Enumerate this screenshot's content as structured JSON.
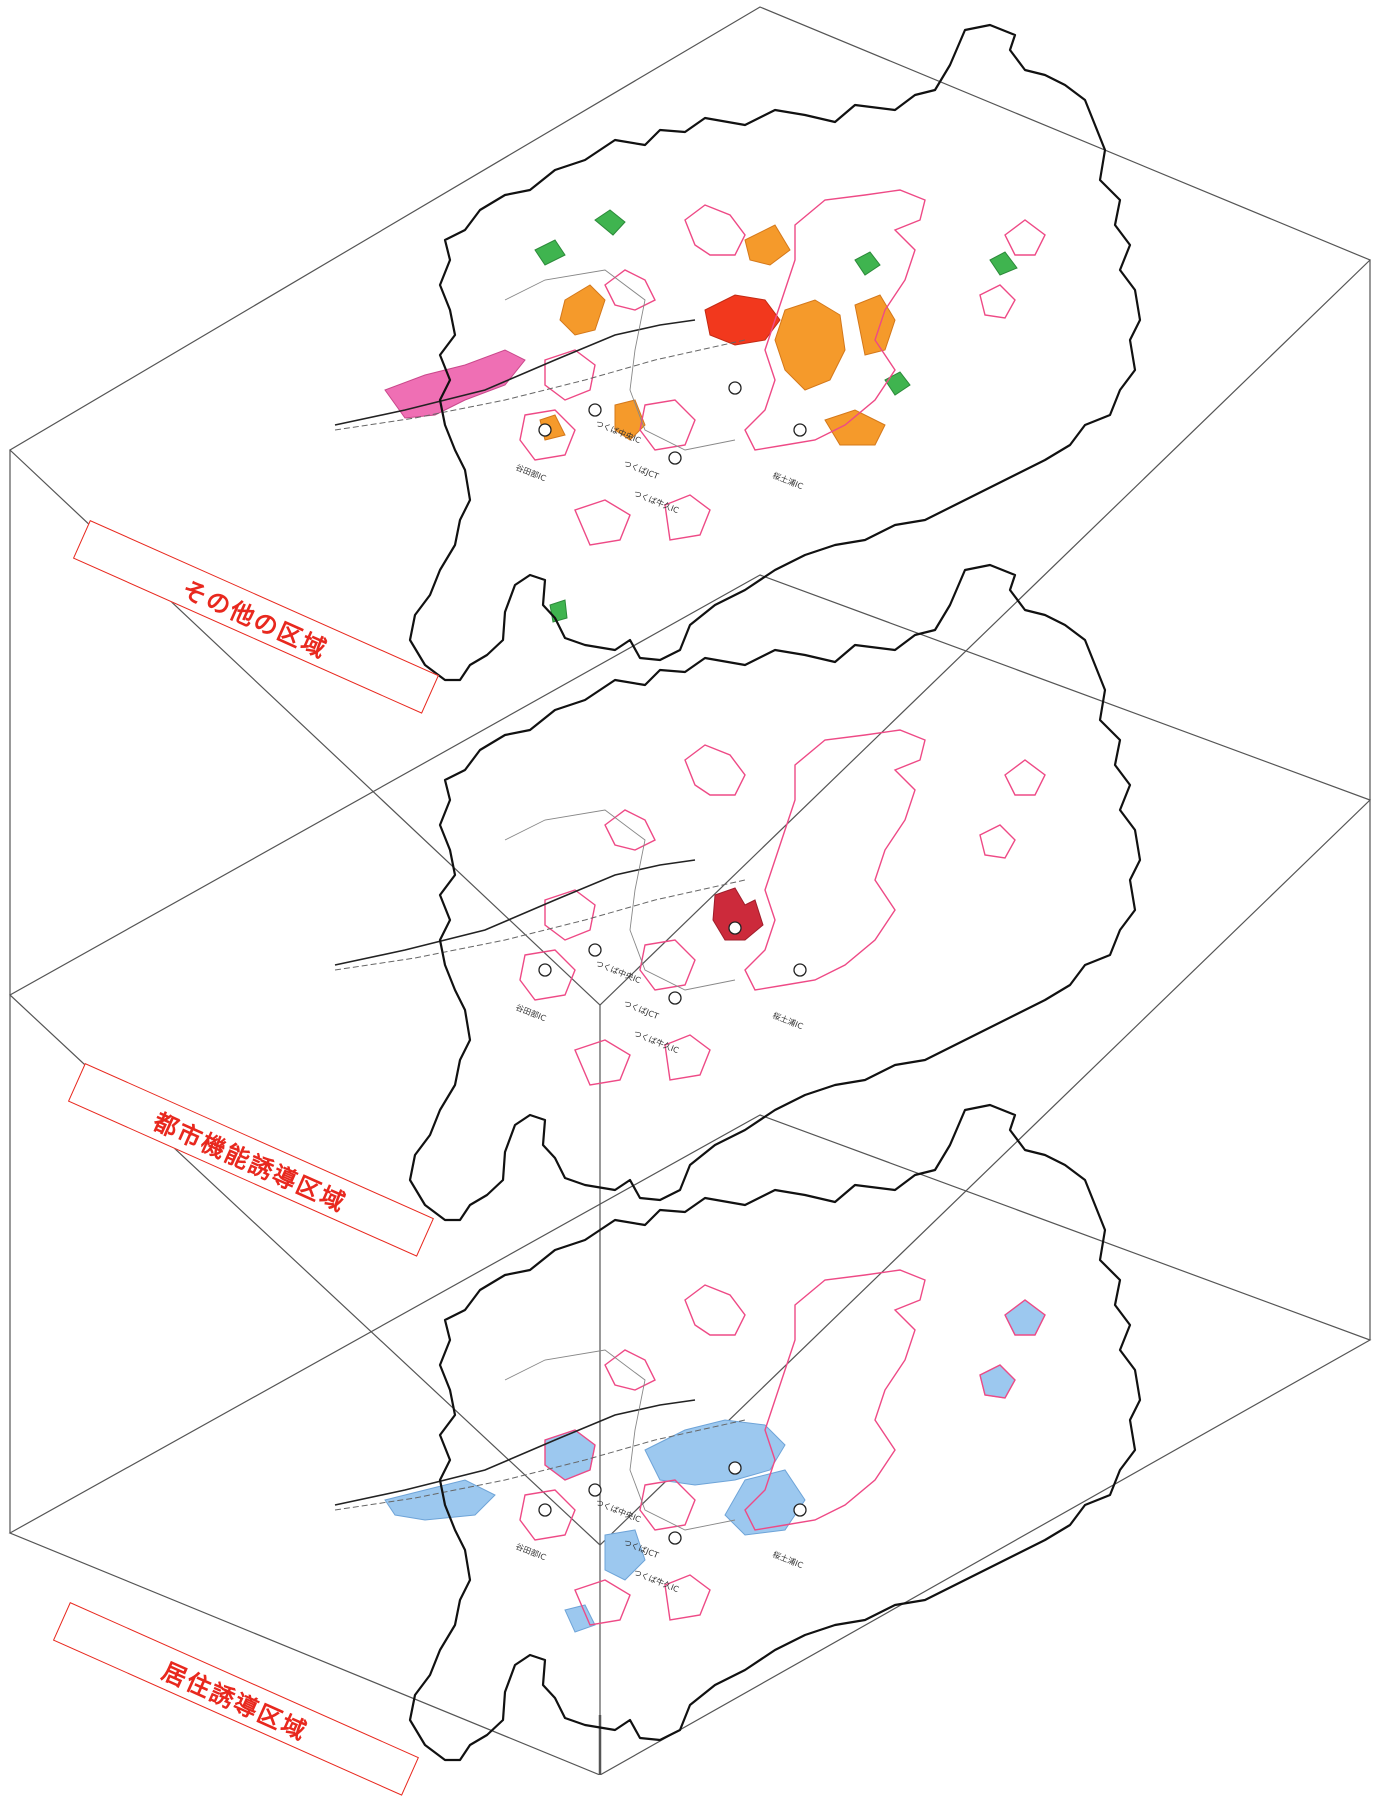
{
  "colors": {
    "frame": "#555555",
    "boundary": "#111111",
    "district_outline": "#ee4a86",
    "label_red": "#e8281e",
    "other_orange": "#f59a2b",
    "other_red": "#f2381d",
    "other_pink": "#ef6fb4",
    "other_green": "#3fb44f",
    "urban_function": "#cc2a3b",
    "residential": "#9cc8ef"
  },
  "layers": [
    {
      "id": "other",
      "label": "その他の区域",
      "road_labels": [
        "つくば中央IC",
        "谷田部IC",
        "桜土浦IC",
        "つくばJCT",
        "つくば牛久IC"
      ]
    },
    {
      "id": "urban-function",
      "label": "都市機能誘導区域",
      "road_labels": [
        "つくば中央IC",
        "谷田部IC",
        "桜土浦IC",
        "つくばJCT",
        "つくば牛久IC"
      ]
    },
    {
      "id": "residential",
      "label": "居住誘導区域",
      "road_labels": [
        "つくば中央IC",
        "谷田部IC",
        "桜土浦IC",
        "つくばJCT",
        "つくば牛久IC"
      ]
    }
  ]
}
